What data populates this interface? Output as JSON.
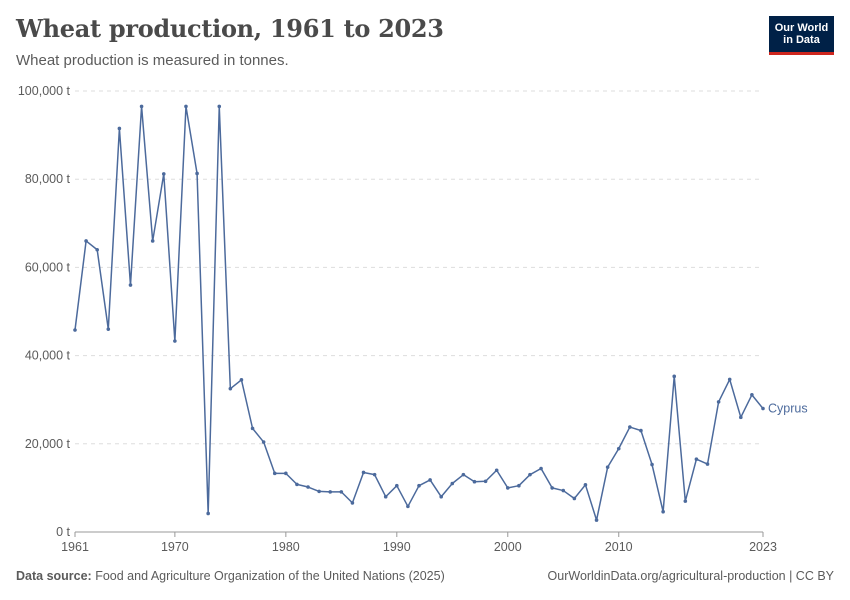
{
  "header": {
    "title": "Wheat production, 1961 to 2023",
    "subtitle": "Wheat production is measured in tonnes."
  },
  "logo": {
    "line1": "Our World",
    "line2": "in Data"
  },
  "footer": {
    "source_label": "Data source:",
    "source_text": "Food and Agriculture Organization of the United Nations (2025)",
    "right_text": "OurWorldinData.org/agricultural-production | CC BY"
  },
  "colors": {
    "series": "#4c6a9c",
    "grid": "#dddddd",
    "axis": "#999999",
    "logo_bg": "#002147",
    "logo_accent": "#ce261e"
  },
  "chart_data": {
    "type": "line",
    "title": "Wheat production, 1961 to 2023",
    "xlabel": "",
    "ylabel": "",
    "xlim": [
      1961,
      2023
    ],
    "ylim": [
      0,
      100000
    ],
    "y_ticks": [
      0,
      20000,
      40000,
      60000,
      80000,
      100000
    ],
    "y_tick_labels": [
      "0 t",
      "20,000 t",
      "40,000 t",
      "60,000 t",
      "80,000 t",
      "100,000 t"
    ],
    "x_ticks": [
      1961,
      1970,
      1980,
      1990,
      2000,
      2010,
      2023
    ],
    "x_tick_labels": [
      "1961",
      "1970",
      "1980",
      "1990",
      "2000",
      "2010",
      "2023"
    ],
    "grid": "horizontal dashed",
    "series": [
      {
        "name": "Cyprus",
        "x": [
          1961,
          1962,
          1963,
          1964,
          1965,
          1966,
          1967,
          1968,
          1969,
          1970,
          1971,
          1972,
          1973,
          1974,
          1975,
          1976,
          1977,
          1978,
          1979,
          1980,
          1981,
          1982,
          1983,
          1984,
          1985,
          1986,
          1987,
          1988,
          1989,
          1990,
          1991,
          1992,
          1993,
          1994,
          1995,
          1996,
          1997,
          1998,
          1999,
          2000,
          2001,
          2002,
          2003,
          2004,
          2005,
          2006,
          2007,
          2008,
          2009,
          2010,
          2011,
          2012,
          2013,
          2014,
          2015,
          2016,
          2017,
          2018,
          2019,
          2020,
          2021,
          2022,
          2023
        ],
        "values": [
          45800,
          66000,
          64000,
          46000,
          91500,
          56000,
          96500,
          66000,
          81200,
          43300,
          96500,
          81300,
          4200,
          96500,
          32500,
          34500,
          23500,
          20400,
          13300,
          13300,
          10800,
          10200,
          9200,
          9100,
          9100,
          6600,
          13500,
          13000,
          8000,
          10500,
          5800,
          10500,
          11800,
          8000,
          11000,
          13000,
          11400,
          11500,
          14000,
          10000,
          10500,
          13000,
          14400,
          10000,
          9400,
          7600,
          10700,
          2700,
          14700,
          18900,
          23800,
          23000,
          15300,
          4600,
          35300,
          7000,
          16500,
          15400,
          29500,
          34600,
          26000,
          31100,
          28000
        ]
      }
    ]
  }
}
